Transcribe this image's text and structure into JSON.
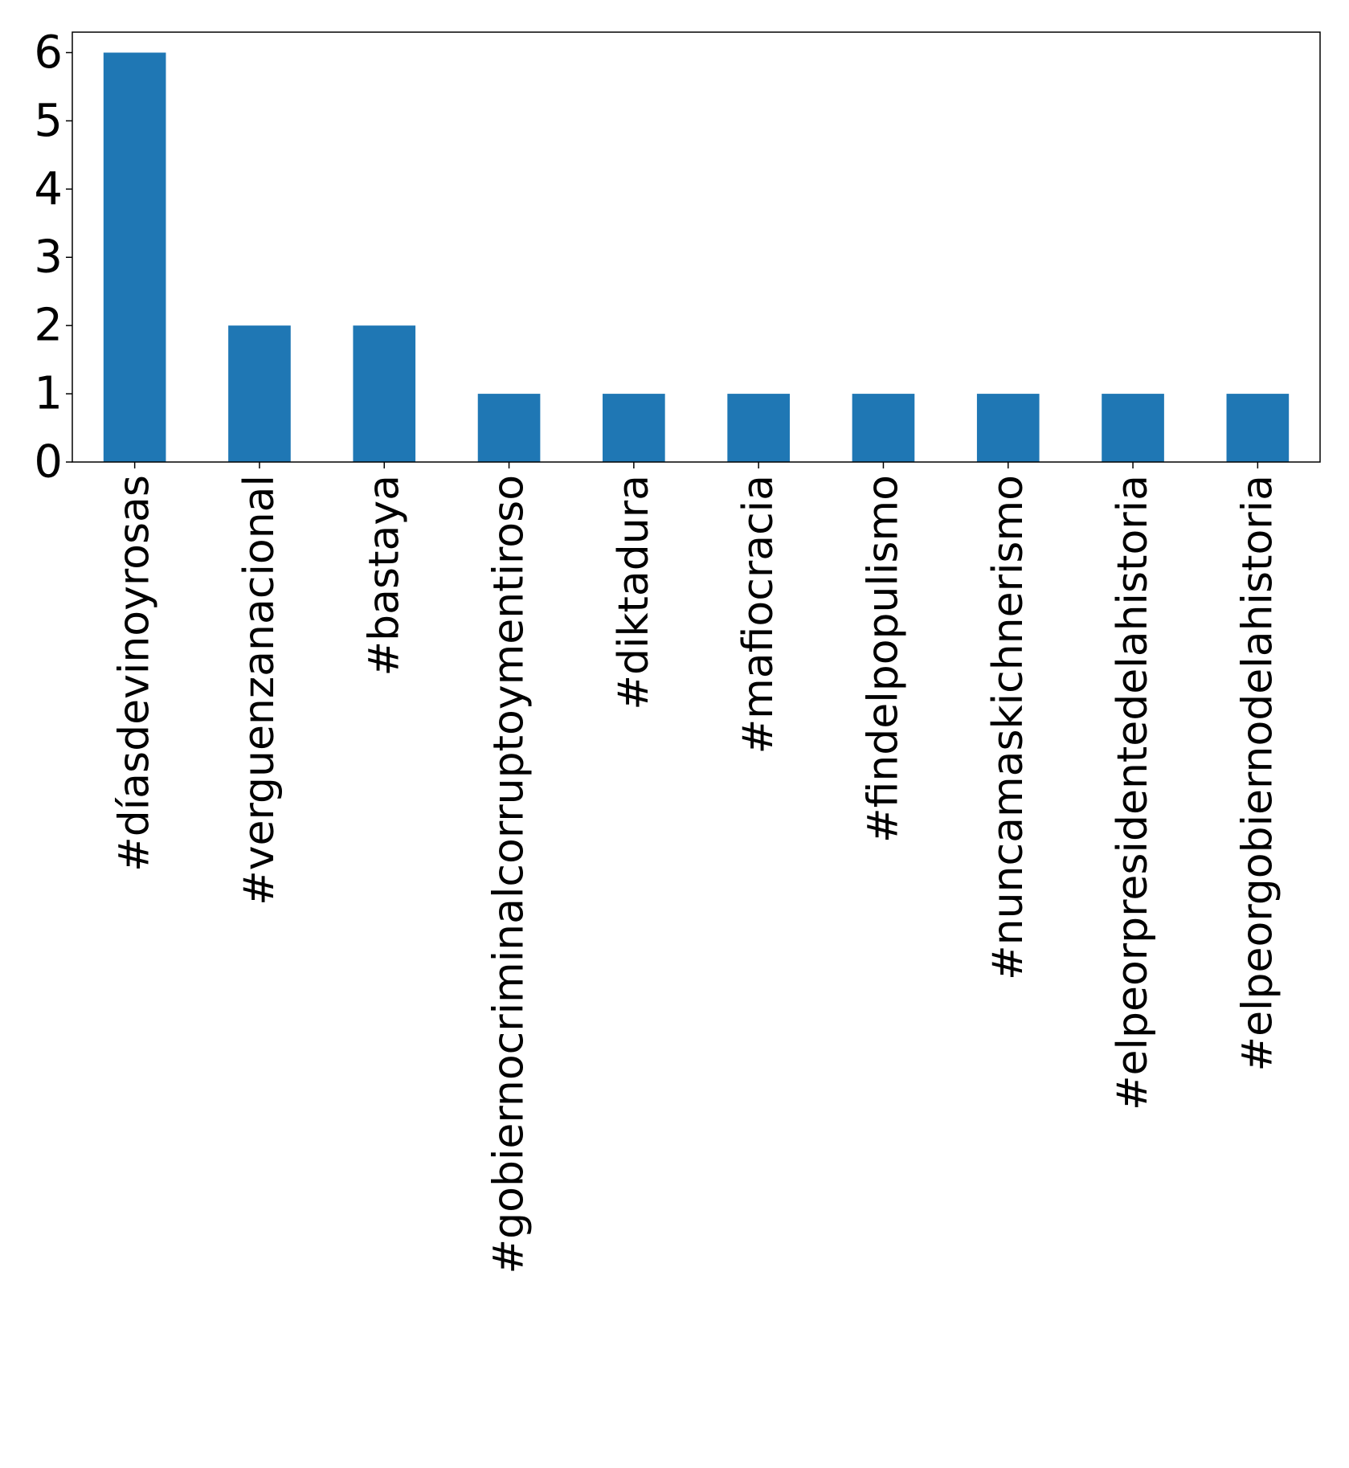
{
  "chart_data": {
    "type": "bar",
    "title": "",
    "xlabel": "",
    "ylabel": "",
    "categories": [
      "#díasdevinoyrosas",
      "#verguenzanacional",
      "#bastaya",
      "#gobiernocriminalcorruptoymentiroso",
      "#diktadura",
      "#mafiocracia",
      "#findelpopulismo",
      "#nuncamaskichnerismo",
      "#elpeorpresidentedelahistoria",
      "#elpeorgobiernodelahistoria"
    ],
    "values": [
      6,
      2,
      2,
      1,
      1,
      1,
      1,
      1,
      1,
      1
    ],
    "ylim": [
      0,
      6.3
    ],
    "yticks": [
      0,
      1,
      2,
      3,
      4,
      5,
      6
    ],
    "bar_color": "#1f77b4",
    "grid": false,
    "legend": "none"
  }
}
